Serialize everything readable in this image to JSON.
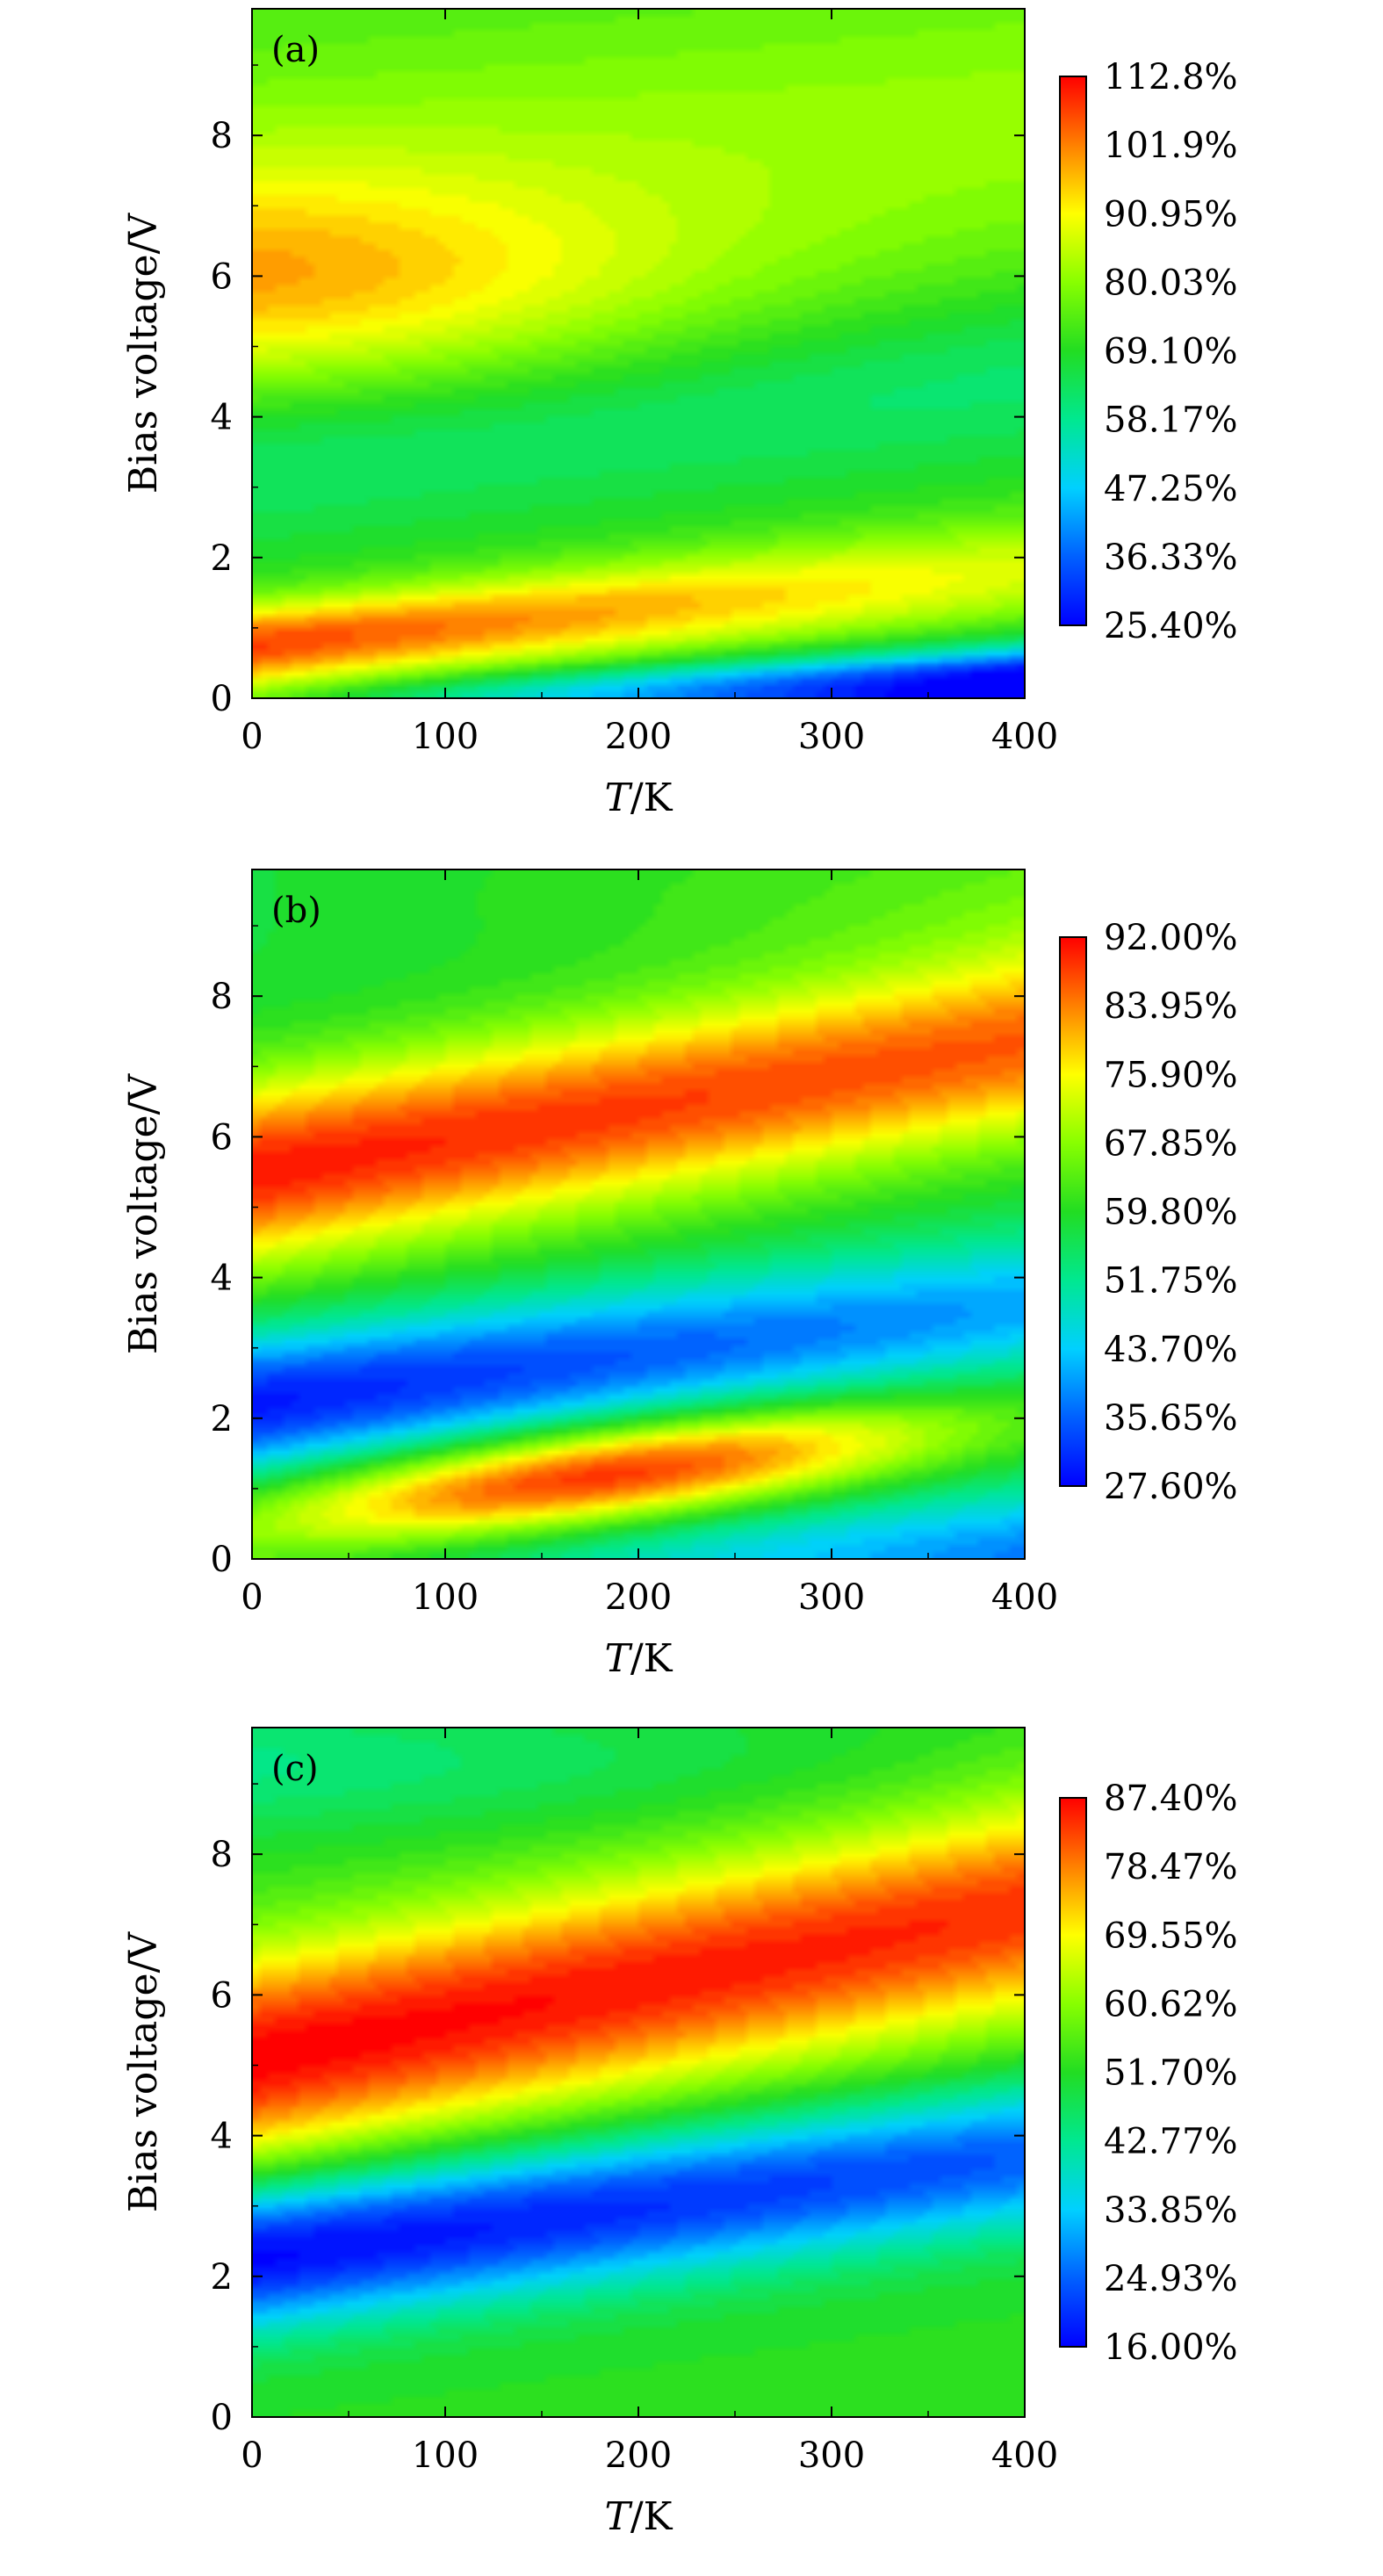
{
  "chart_data": [
    {
      "type": "heatmap",
      "panel_label": "(a)",
      "xlabel_italic": "T",
      "xlabel_rest": "/K",
      "ylabel": "Bias voltage/V",
      "xlim": [
        0,
        400
      ],
      "ylim": [
        0,
        9.8
      ],
      "x_ticks": [
        "0",
        "100",
        "200",
        "300",
        "400"
      ],
      "y_ticks": [
        "0",
        "2",
        "4",
        "6",
        "8"
      ],
      "grid": false,
      "colorbar": {
        "min": 25.4,
        "max": 112.8,
        "labels": [
          "112.8%",
          "101.9%",
          "90.95%",
          "80.03%",
          "69.10%",
          "58.17%",
          "47.25%",
          "36.33%",
          "25.40%"
        ]
      },
      "key_features": [
        {
          "T": 40,
          "V": 0.8,
          "value": 112.8
        },
        {
          "T": 0,
          "V": 5.8,
          "value": 92
        },
        {
          "T": 400,
          "V": 0.2,
          "value": 25.4
        },
        {
          "T": 400,
          "V": 4.8,
          "value": 69
        }
      ]
    },
    {
      "type": "heatmap",
      "panel_label": "(b)",
      "xlabel_italic": "T",
      "xlabel_rest": "/K",
      "ylabel": "Bias voltage/V",
      "xlim": [
        0,
        400
      ],
      "ylim": [
        0,
        9.8
      ],
      "x_ticks": [
        "0",
        "100",
        "200",
        "300",
        "400"
      ],
      "y_ticks": [
        "0",
        "2",
        "4",
        "6",
        "8"
      ],
      "grid": false,
      "colorbar": {
        "min": 27.6,
        "max": 92.0,
        "labels": [
          "92.00%",
          "83.95%",
          "75.90%",
          "67.85%",
          "59.80%",
          "51.75%",
          "43.70%",
          "35.65%",
          "27.60%"
        ]
      },
      "key_features": [
        {
          "T": 0,
          "V": 5.4,
          "value": 92
        },
        {
          "T": 0,
          "V": 2.0,
          "value": 27.6
        },
        {
          "T": 200,
          "V": 1.4,
          "value": 91
        },
        {
          "T": 400,
          "V": 0.3,
          "value": 30
        }
      ]
    },
    {
      "type": "heatmap",
      "panel_label": "(c)",
      "xlabel_italic": "T",
      "xlabel_rest": "/K",
      "ylabel": "Bias voltage/V",
      "xlim": [
        0,
        400
      ],
      "ylim": [
        0,
        9.8
      ],
      "x_ticks": [
        "0",
        "100",
        "200",
        "300",
        "400"
      ],
      "y_ticks": [
        "0",
        "2",
        "4",
        "6",
        "8"
      ],
      "grid": false,
      "colorbar": {
        "min": 16.0,
        "max": 87.4,
        "labels": [
          "87.40%",
          "78.47%",
          "69.55%",
          "60.62%",
          "51.70%",
          "42.77%",
          "33.85%",
          "24.93%",
          "16.00%"
        ]
      },
      "key_features": [
        {
          "T": 0,
          "V": 5.1,
          "value": 87.4
        },
        {
          "T": 100,
          "V": 2.5,
          "value": 16
        },
        {
          "T": 300,
          "V": 1.2,
          "value": 52
        },
        {
          "T": 400,
          "V": 7.2,
          "value": 80
        }
      ]
    }
  ]
}
